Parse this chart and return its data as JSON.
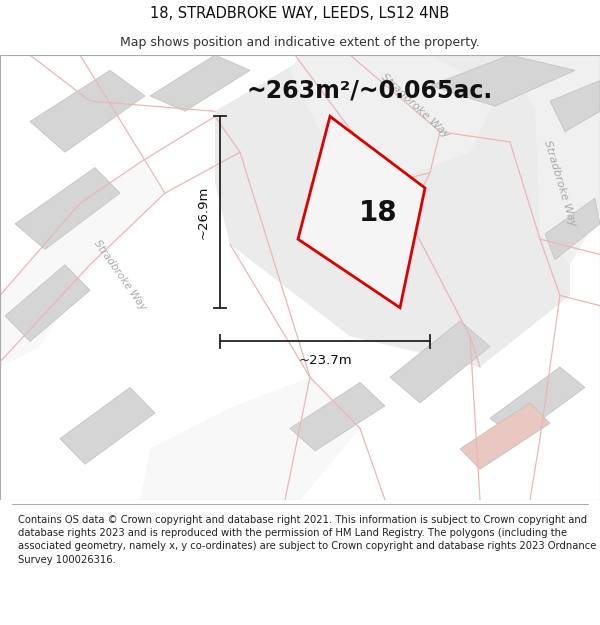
{
  "title_line1": "18, STRADBROKE WAY, LEEDS, LS12 4NB",
  "title_line2": "Map shows position and indicative extent of the property.",
  "area_text": "~263m²/~0.065ac.",
  "dim_height": "~26.9m",
  "dim_width": "~23.7m",
  "number_label": "18",
  "footer_text": "Contains OS data © Crown copyright and database right 2021. This information is subject to Crown copyright and database rights 2023 and is reproduced with the permission of HM Land Registry. The polygons (including the associated geometry, namely x, y co-ordinates) are subject to Crown copyright and database rights 2023 Ordnance Survey 100026316.",
  "bg_color": "#ffffff",
  "map_bg": "#ffffff",
  "road_line_color": "#e8b8b8",
  "property_line_color": "#dd0000",
  "dim_line_color": "#222222",
  "title_fontsize": 10.5,
  "subtitle_fontsize": 9,
  "area_fontsize": 17,
  "number_fontsize": 20,
  "dim_fontsize": 9.5,
  "footer_fontsize": 7.2
}
